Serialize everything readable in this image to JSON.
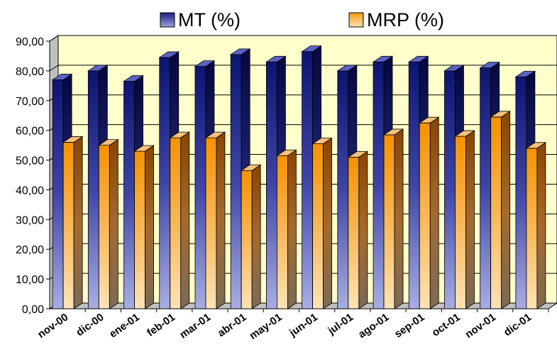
{
  "chart_data": {
    "type": "bar",
    "style": "3d-clustered-column",
    "title": "",
    "xlabel": "",
    "ylabel": "",
    "categories": [
      "nov-00",
      "dic-00",
      "ene-01",
      "feb-01",
      "mar-01",
      "abr-01",
      "may-01",
      "jun-01",
      "jul-01",
      "ago-01",
      "sep-01",
      "oct-01",
      "nov-01",
      "dic-01"
    ],
    "series": [
      {
        "name": "MT (%)",
        "color": "#2a2f8f",
        "values": [
          77.0,
          80.0,
          76.5,
          84.5,
          81.5,
          85.5,
          83.0,
          86.5,
          80.0,
          83.0,
          83.0,
          80.0,
          81.0,
          78.0
        ]
      },
      {
        "name": "MRP (%)",
        "color": "#f5a13c",
        "values": [
          56.0,
          55.0,
          53.0,
          57.5,
          57.5,
          46.5,
          51.5,
          55.5,
          51.0,
          58.5,
          62.5,
          58.0,
          64.5,
          54.0
        ]
      }
    ],
    "ylim": [
      0,
      90
    ],
    "yticks": [
      "0,00",
      "10,00",
      "20,00",
      "30,00",
      "40,00",
      "50,00",
      "60,00",
      "70,00",
      "80,00",
      "90,00"
    ],
    "grid": true,
    "legend_position": "top",
    "plot_background": "#ffffcc"
  }
}
